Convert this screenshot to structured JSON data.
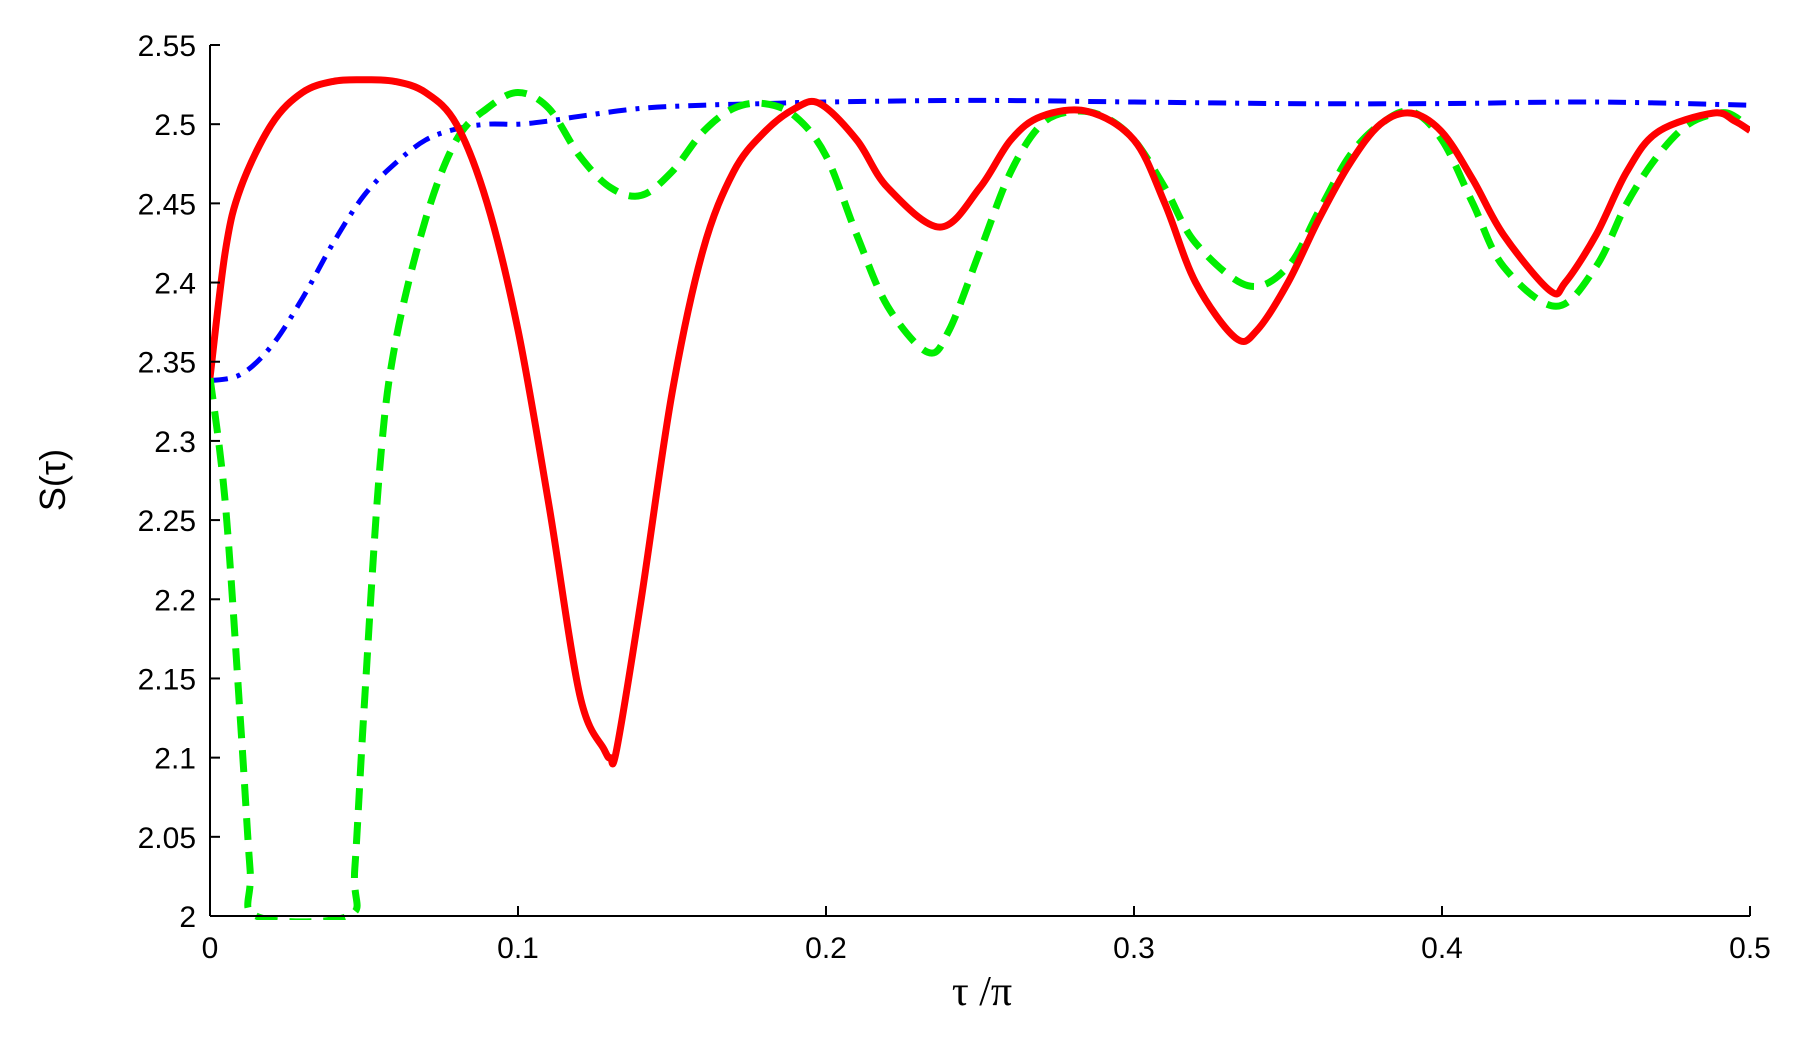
{
  "chart_data": {
    "type": "line",
    "title": "",
    "xlabel": "τ /π",
    "ylabel": "S(τ)",
    "xlim": [
      0,
      0.5
    ],
    "ylim": [
      2,
      2.55
    ],
    "xticks": [
      0,
      0.1,
      0.2,
      0.3,
      0.4,
      0.5
    ],
    "xtick_labels": [
      "0",
      "0.1",
      "0.2",
      "0.3",
      "0.4",
      "0.5"
    ],
    "yticks": [
      2,
      2.05,
      2.1,
      2.15,
      2.2,
      2.25,
      2.3,
      2.35,
      2.4,
      2.45,
      2.5,
      2.55
    ],
    "ytick_labels": [
      "2",
      "2.05",
      "2.1",
      "2.15",
      "2.2",
      "2.25",
      "2.3",
      "2.35",
      "2.4",
      "2.45",
      "2.5",
      "2.55"
    ],
    "grid": false,
    "legend": "none",
    "series": [
      {
        "color": "#ff0000",
        "style": "solid",
        "x": [
          0,
          0.005,
          0.01,
          0.02,
          0.03,
          0.04,
          0.05,
          0.06,
          0.07,
          0.08,
          0.09,
          0.1,
          0.11,
          0.12,
          0.128,
          0.13,
          0.132,
          0.14,
          0.15,
          0.16,
          0.17,
          0.18,
          0.19,
          0.198,
          0.21,
          0.22,
          0.237,
          0.25,
          0.26,
          0.27,
          0.285,
          0.3,
          0.31,
          0.32,
          0.333,
          0.34,
          0.35,
          0.36,
          0.37,
          0.38,
          0.39,
          0.4,
          0.41,
          0.42,
          0.435,
          0.44,
          0.45,
          0.46,
          0.47,
          0.488,
          0.495,
          0.5
        ],
        "y": [
          2.34,
          2.42,
          2.46,
          2.5,
          2.52,
          2.527,
          2.528,
          2.527,
          2.52,
          2.5,
          2.45,
          2.37,
          2.26,
          2.14,
          2.105,
          2.1,
          2.105,
          2.2,
          2.33,
          2.42,
          2.47,
          2.495,
          2.51,
          2.513,
          2.49,
          2.46,
          2.435,
          2.46,
          2.49,
          2.505,
          2.508,
          2.49,
          2.45,
          2.4,
          2.365,
          2.37,
          2.4,
          2.44,
          2.475,
          2.5,
          2.507,
          2.495,
          2.465,
          2.43,
          2.395,
          2.4,
          2.43,
          2.47,
          2.495,
          2.507,
          2.502,
          2.496
        ]
      },
      {
        "color": "#00ee00",
        "style": "dashed",
        "x": [
          0,
          0.005,
          0.01,
          0.013,
          0.015,
          0.045,
          0.047,
          0.05,
          0.055,
          0.06,
          0.07,
          0.08,
          0.09,
          0.1,
          0.11,
          0.12,
          0.13,
          0.14,
          0.15,
          0.16,
          0.17,
          0.18,
          0.19,
          0.2,
          0.21,
          0.22,
          0.233,
          0.24,
          0.25,
          0.26,
          0.27,
          0.28,
          0.29,
          0.3,
          0.31,
          0.32,
          0.337,
          0.35,
          0.36,
          0.37,
          0.38,
          0.39,
          0.4,
          0.41,
          0.42,
          0.437,
          0.45,
          0.46,
          0.47,
          0.48,
          0.49,
          0.495,
          0.5
        ],
        "y": [
          2.34,
          2.26,
          2.12,
          2.03,
          2.0,
          2.0,
          2.03,
          2.13,
          2.28,
          2.36,
          2.44,
          2.49,
          2.51,
          2.52,
          2.51,
          2.48,
          2.46,
          2.455,
          2.47,
          2.495,
          2.51,
          2.513,
          2.505,
          2.48,
          2.43,
          2.385,
          2.356,
          2.37,
          2.42,
          2.47,
          2.5,
          2.508,
          2.505,
          2.49,
          2.46,
          2.425,
          2.398,
          2.41,
          2.445,
          2.48,
          2.5,
          2.508,
          2.49,
          2.45,
          2.41,
          2.385,
          2.41,
          2.45,
          2.48,
          2.5,
          2.507,
          2.505,
          2.497
        ]
      },
      {
        "color": "#0000ff",
        "style": "dashdot",
        "x": [
          0,
          0.01,
          0.02,
          0.03,
          0.04,
          0.05,
          0.06,
          0.07,
          0.08,
          0.09,
          0.1,
          0.11,
          0.12,
          0.14,
          0.16,
          0.18,
          0.2,
          0.25,
          0.3,
          0.35,
          0.4,
          0.45,
          0.5
        ],
        "y": [
          2.338,
          2.342,
          2.36,
          2.39,
          2.425,
          2.455,
          2.475,
          2.49,
          2.497,
          2.5,
          2.5,
          2.502,
          2.505,
          2.51,
          2.512,
          2.513,
          2.514,
          2.515,
          2.514,
          2.513,
          2.513,
          2.514,
          2.512
        ]
      }
    ]
  }
}
